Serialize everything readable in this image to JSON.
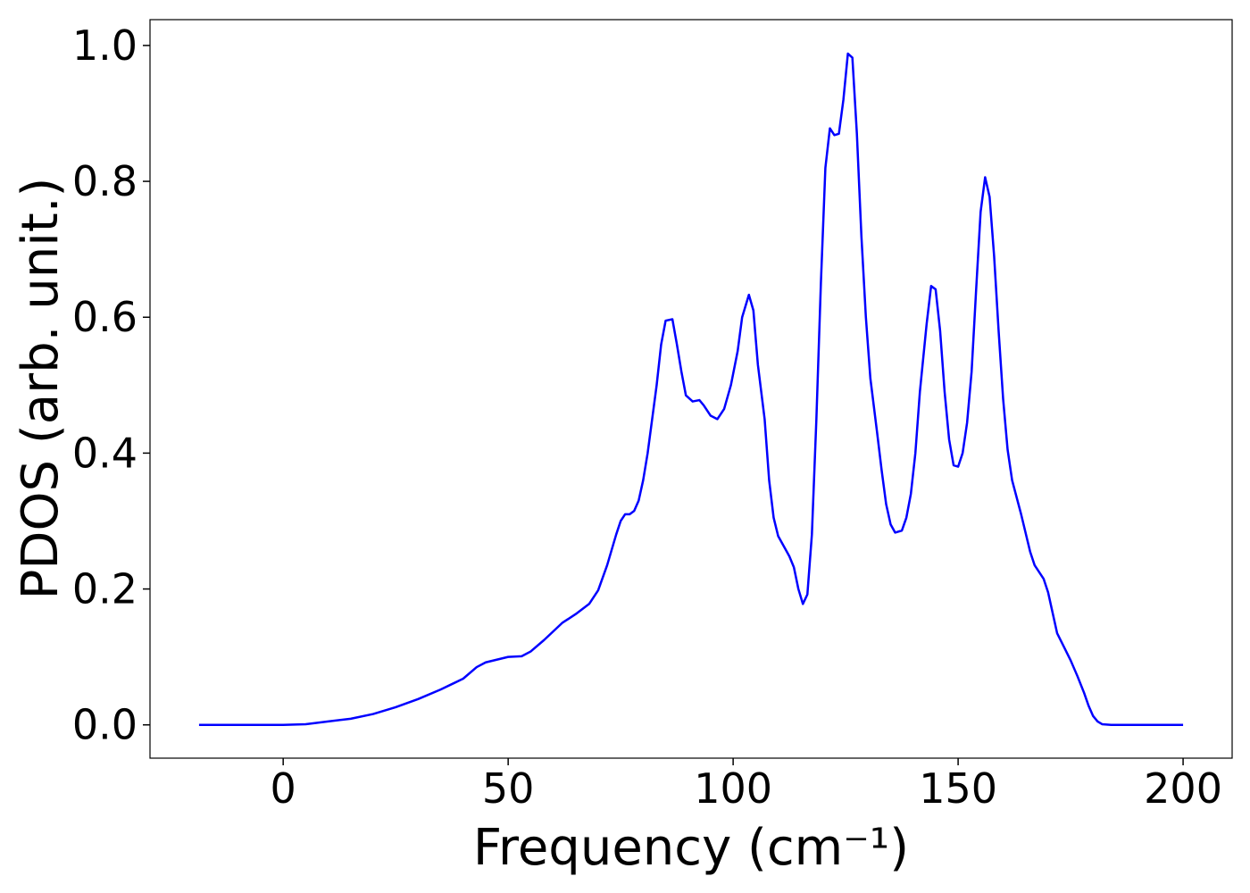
{
  "chart_data": {
    "type": "line",
    "xlabel": "Frequency (cm⁻¹)",
    "ylabel": "PDOS (arb. unit.)",
    "color": "#0000ff",
    "x": [
      -18.7,
      0,
      5,
      10,
      15,
      20,
      25,
      30,
      35,
      40,
      43,
      45,
      50,
      53,
      55,
      58,
      62,
      65,
      68,
      70,
      72,
      74,
      75,
      76,
      77,
      78,
      79,
      80,
      81,
      82,
      83,
      84,
      85,
      86.5,
      87.5,
      88.5,
      89.5,
      91,
      92.5,
      93.5,
      95,
      96.5,
      98,
      99.5,
      101,
      102,
      103.5,
      104.5,
      105.5,
      107,
      108,
      109,
      110,
      111.5,
      112.5,
      113.5,
      114.5,
      115.5,
      116.5,
      117.5,
      118.5,
      119.5,
      120.5,
      121.5,
      122.5,
      123.5,
      124.5,
      125.5,
      126.5,
      127.5,
      128.5,
      129.5,
      130.5,
      132,
      133,
      134,
      135,
      136,
      137.5,
      138.5,
      139.5,
      140.5,
      141.5,
      143,
      144,
      145,
      146,
      147,
      148,
      149,
      150,
      151,
      152,
      153,
      154,
      155,
      156,
      157,
      158,
      159,
      160,
      161,
      162,
      164,
      166,
      167,
      169,
      170,
      171,
      172,
      173.5,
      175,
      176.5,
      178,
      179,
      180,
      181,
      182,
      184,
      200
    ],
    "values": [
      0,
      0,
      0.001,
      0.005,
      0.009,
      0.016,
      0.026,
      0.038,
      0.052,
      0.068,
      0.085,
      0.092,
      0.1,
      0.101,
      0.108,
      0.125,
      0.15,
      0.163,
      0.178,
      0.198,
      0.235,
      0.28,
      0.3,
      0.31,
      0.31,
      0.315,
      0.33,
      0.36,
      0.4,
      0.45,
      0.5,
      0.56,
      0.595,
      0.597,
      0.56,
      0.52,
      0.485,
      0.476,
      0.478,
      0.47,
      0.455,
      0.45,
      0.465,
      0.5,
      0.55,
      0.6,
      0.633,
      0.61,
      0.53,
      0.45,
      0.36,
      0.305,
      0.278,
      0.26,
      0.248,
      0.232,
      0.2,
      0.178,
      0.192,
      0.28,
      0.45,
      0.65,
      0.82,
      0.878,
      0.868,
      0.87,
      0.92,
      0.988,
      0.982,
      0.87,
      0.72,
      0.6,
      0.51,
      0.43,
      0.375,
      0.325,
      0.295,
      0.283,
      0.286,
      0.305,
      0.34,
      0.4,
      0.49,
      0.59,
      0.646,
      0.641,
      0.58,
      0.49,
      0.42,
      0.382,
      0.38,
      0.4,
      0.445,
      0.52,
      0.64,
      0.755,
      0.806,
      0.777,
      0.69,
      0.58,
      0.48,
      0.405,
      0.36,
      0.31,
      0.255,
      0.235,
      0.215,
      0.195,
      0.165,
      0.135,
      0.115,
      0.095,
      0.072,
      0.047,
      0.028,
      0.013,
      0.005,
      0.001,
      0,
      0
    ],
    "xlim": [
      -29.6,
      210.9
    ],
    "xticks": [
      0,
      50,
      100,
      150,
      200
    ],
    "ylim": [
      -0.049,
      1.038
    ],
    "yticks": [
      {
        "value": 0,
        "label": "0.0"
      },
      0.2,
      0.4,
      0.6,
      0.8,
      {
        "value": 1,
        "label": "1.0"
      }
    ],
    "grid": false
  }
}
